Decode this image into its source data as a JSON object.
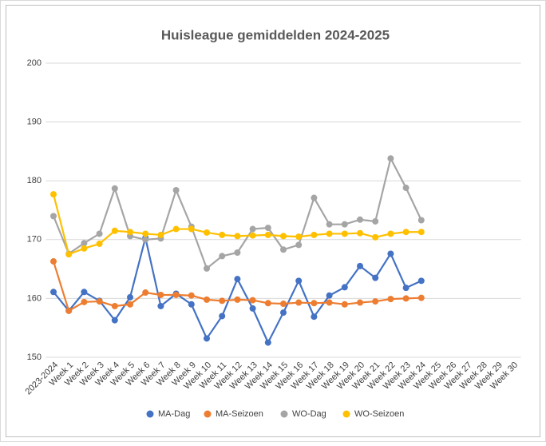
{
  "chart_data": {
    "type": "line",
    "title": "Huisleague gemiddelden 2024-2025",
    "categories": [
      "2023-2024",
      "Week 1",
      "Week 2",
      "Week 3",
      "Week 4",
      "Week 5",
      "Week 6",
      "Week 7",
      "Week 8",
      "Week 9",
      "Week 10",
      "Week 11",
      "Week 12",
      "Week 13",
      "Week 14",
      "Week 15",
      "Week 16",
      "Week 17",
      "Week 18",
      "Week 19",
      "Week 20",
      "Week 21",
      "Week 22",
      "Week 23",
      "Week 24",
      "Week 25",
      "Week 26",
      "Week 27",
      "Week 28",
      "Week 29",
      "Week 30"
    ],
    "series": [
      {
        "name": "MA-Dag",
        "color": "#4472c4",
        "values": [
          161.1,
          157.9,
          161.1,
          159.6,
          156.3,
          160.2,
          170.3,
          158.7,
          160.8,
          159,
          153.2,
          157,
          163.3,
          158.3,
          152.5,
          157.6,
          163,
          156.9,
          160.5,
          161.9,
          165.5,
          163.5,
          167.6,
          161.8,
          163,
          null,
          null,
          null,
          null,
          null,
          null
        ]
      },
      {
        "name": "MA-Seizoen",
        "color": "#ed7d31",
        "values": [
          166.3,
          157.9,
          159.4,
          159.5,
          158.7,
          159,
          161,
          160.6,
          160.6,
          160.5,
          159.8,
          159.6,
          159.8,
          159.7,
          159.2,
          159.1,
          159.3,
          159.2,
          159.3,
          159,
          159.3,
          159.5,
          159.9,
          160,
          160.1,
          null,
          null,
          null,
          null,
          null,
          null
        ]
      },
      {
        "name": "WO-Dag",
        "color": "#a5a5a5",
        "values": [
          174,
          167.6,
          169.4,
          171,
          178.7,
          170.6,
          170,
          170.2,
          178.4,
          172.2,
          165.1,
          167.2,
          167.8,
          171.8,
          172,
          168.3,
          169.1,
          177.1,
          172.6,
          172.6,
          173.4,
          173.1,
          183.8,
          178.8,
          173.3,
          null,
          null,
          null,
          null,
          null,
          null
        ]
      },
      {
        "name": "WO-Seizoen",
        "color": "#ffc000",
        "values": [
          177.7,
          167.5,
          168.5,
          169.3,
          171.5,
          171.3,
          171,
          170.8,
          171.8,
          171.8,
          171.2,
          170.8,
          170.6,
          170.7,
          170.8,
          170.6,
          170.5,
          170.8,
          171,
          171,
          171.1,
          170.4,
          171,
          171.3,
          171.3,
          null,
          null,
          null,
          null,
          null,
          null
        ]
      }
    ],
    "ylim": [
      150,
      200
    ],
    "yticks": [
      150,
      160,
      170,
      180,
      190,
      200
    ],
    "grid": true,
    "legend": "bottom"
  }
}
